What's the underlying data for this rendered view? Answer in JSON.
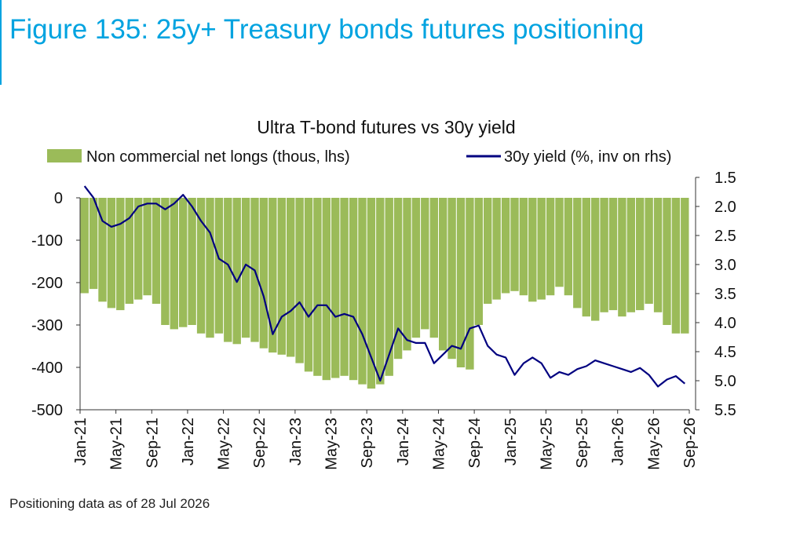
{
  "figure": {
    "title": "Figure 135: 25y+ Treasury bonds futures positioning",
    "accent_color": "#00a3e0"
  },
  "footnote": "Positioning data as of 28 Jul 2026",
  "chart_data": {
    "type": "bar",
    "title": "Ultra T-bond futures vs 30y yield",
    "legend_position": "top",
    "grid": false,
    "x_tick_labels": [
      "Jan-21",
      "May-21",
      "Sep-21",
      "Jan-22",
      "May-22",
      "Sep-22",
      "Jan-23",
      "May-23",
      "Sep-23",
      "Jan-24",
      "May-24",
      "Sep-24",
      "Jan-25",
      "May-25",
      "Sep-25",
      "Jan-26",
      "May-26",
      "Sep-26"
    ],
    "x_range": [
      "2021-01",
      "2026-09"
    ],
    "y_left": {
      "ylim": [
        -500,
        0
      ],
      "ticks": [
        0,
        -100,
        -200,
        -300,
        -400,
        -500
      ]
    },
    "y_right": {
      "ylim": [
        1.5,
        5.5
      ],
      "inverted": true,
      "ticks": [
        1.5,
        2.0,
        2.5,
        3.0,
        3.5,
        4.0,
        4.5,
        5.0,
        5.5
      ]
    },
    "series": [
      {
        "name": "Non commercial net longs (thous, lhs)",
        "type": "bar",
        "axis": "left",
        "color": "#9bbb59",
        "points": [
          [
            "2021-01",
            -225
          ],
          [
            "2021-02",
            -215
          ],
          [
            "2021-03",
            -245
          ],
          [
            "2021-04",
            -260
          ],
          [
            "2021-05",
            -265
          ],
          [
            "2021-06",
            -250
          ],
          [
            "2021-07",
            -240
          ],
          [
            "2021-08",
            -230
          ],
          [
            "2021-09",
            -250
          ],
          [
            "2021-10",
            -300
          ],
          [
            "2021-11",
            -310
          ],
          [
            "2021-12",
            -305
          ],
          [
            "2022-01",
            -300
          ],
          [
            "2022-02",
            -320
          ],
          [
            "2022-03",
            -330
          ],
          [
            "2022-04",
            -320
          ],
          [
            "2022-05",
            -340
          ],
          [
            "2022-06",
            -345
          ],
          [
            "2022-07",
            -330
          ],
          [
            "2022-08",
            -340
          ],
          [
            "2022-09",
            -355
          ],
          [
            "2022-10",
            -365
          ],
          [
            "2022-11",
            -370
          ],
          [
            "2022-12",
            -375
          ],
          [
            "2023-01",
            -390
          ],
          [
            "2023-02",
            -410
          ],
          [
            "2023-03",
            -420
          ],
          [
            "2023-04",
            -430
          ],
          [
            "2023-05",
            -425
          ],
          [
            "2023-06",
            -420
          ],
          [
            "2023-07",
            -430
          ],
          [
            "2023-08",
            -440
          ],
          [
            "2023-09",
            -450
          ],
          [
            "2023-10",
            -440
          ],
          [
            "2023-11",
            -420
          ],
          [
            "2023-12",
            -380
          ],
          [
            "2024-01",
            -360
          ],
          [
            "2024-02",
            -330
          ],
          [
            "2024-03",
            -310
          ],
          [
            "2024-04",
            -330
          ],
          [
            "2024-05",
            -360
          ],
          [
            "2024-06",
            -380
          ],
          [
            "2024-07",
            -400
          ],
          [
            "2024-08",
            -405
          ],
          [
            "2024-09",
            -300
          ],
          [
            "2024-10",
            -250
          ],
          [
            "2024-11",
            -240
          ],
          [
            "2024-12",
            -225
          ],
          [
            "2025-01",
            -220
          ],
          [
            "2025-02",
            -230
          ],
          [
            "2025-03",
            -245
          ],
          [
            "2025-04",
            -240
          ],
          [
            "2025-05",
            -230
          ],
          [
            "2025-06",
            -210
          ],
          [
            "2025-07",
            -230
          ],
          [
            "2025-08",
            -260
          ],
          [
            "2025-09",
            -280
          ],
          [
            "2025-10",
            -290
          ],
          [
            "2025-11",
            -270
          ],
          [
            "2025-12",
            -265
          ],
          [
            "2026-01",
            -280
          ],
          [
            "2026-02",
            -270
          ],
          [
            "2026-03",
            -265
          ],
          [
            "2026-04",
            -250
          ],
          [
            "2026-05",
            -270
          ],
          [
            "2026-06",
            -300
          ],
          [
            "2026-07",
            -320
          ],
          [
            "2026-08",
            -320
          ]
        ]
      },
      {
        "name": "30y yield (%, inv on rhs)",
        "type": "line",
        "axis": "right",
        "color": "#000080",
        "points": [
          [
            "2021-01",
            1.65
          ],
          [
            "2021-02",
            1.85
          ],
          [
            "2021-03",
            2.25
          ],
          [
            "2021-04",
            2.35
          ],
          [
            "2021-05",
            2.3
          ],
          [
            "2021-06",
            2.2
          ],
          [
            "2021-07",
            2.0
          ],
          [
            "2021-08",
            1.95
          ],
          [
            "2021-09",
            1.95
          ],
          [
            "2021-10",
            2.05
          ],
          [
            "2021-11",
            1.95
          ],
          [
            "2021-12",
            1.8
          ],
          [
            "2022-01",
            2.0
          ],
          [
            "2022-02",
            2.25
          ],
          [
            "2022-03",
            2.45
          ],
          [
            "2022-04",
            2.9
          ],
          [
            "2022-05",
            3.0
          ],
          [
            "2022-06",
            3.3
          ],
          [
            "2022-07",
            3.0
          ],
          [
            "2022-08",
            3.1
          ],
          [
            "2022-09",
            3.55
          ],
          [
            "2022-10",
            4.2
          ],
          [
            "2022-11",
            3.9
          ],
          [
            "2022-12",
            3.8
          ],
          [
            "2023-01",
            3.65
          ],
          [
            "2023-02",
            3.9
          ],
          [
            "2023-03",
            3.7
          ],
          [
            "2023-04",
            3.7
          ],
          [
            "2023-05",
            3.9
          ],
          [
            "2023-06",
            3.85
          ],
          [
            "2023-07",
            3.9
          ],
          [
            "2023-08",
            4.2
          ],
          [
            "2023-09",
            4.6
          ],
          [
            "2023-10",
            5.0
          ],
          [
            "2023-11",
            4.55
          ],
          [
            "2023-12",
            4.1
          ],
          [
            "2024-01",
            4.3
          ],
          [
            "2024-02",
            4.35
          ],
          [
            "2024-03",
            4.35
          ],
          [
            "2024-04",
            4.7
          ],
          [
            "2024-05",
            4.55
          ],
          [
            "2024-06",
            4.4
          ],
          [
            "2024-07",
            4.45
          ],
          [
            "2024-08",
            4.1
          ],
          [
            "2024-09",
            4.05
          ],
          [
            "2024-10",
            4.4
          ],
          [
            "2024-11",
            4.55
          ],
          [
            "2024-12",
            4.6
          ],
          [
            "2025-01",
            4.9
          ],
          [
            "2025-02",
            4.7
          ],
          [
            "2025-03",
            4.6
          ],
          [
            "2025-04",
            4.7
          ],
          [
            "2025-05",
            4.95
          ],
          [
            "2025-06",
            4.85
          ],
          [
            "2025-07",
            4.9
          ],
          [
            "2025-08",
            4.8
          ],
          [
            "2025-09",
            4.75
          ],
          [
            "2025-10",
            4.65
          ],
          [
            "2025-11",
            4.7
          ],
          [
            "2025-12",
            4.75
          ],
          [
            "2026-01",
            4.8
          ],
          [
            "2026-02",
            4.85
          ],
          [
            "2026-03",
            4.78
          ],
          [
            "2026-04",
            4.9
          ],
          [
            "2026-05",
            5.1
          ],
          [
            "2026-06",
            4.98
          ],
          [
            "2026-07",
            4.92
          ],
          [
            "2026-08",
            5.05
          ]
        ]
      }
    ]
  }
}
